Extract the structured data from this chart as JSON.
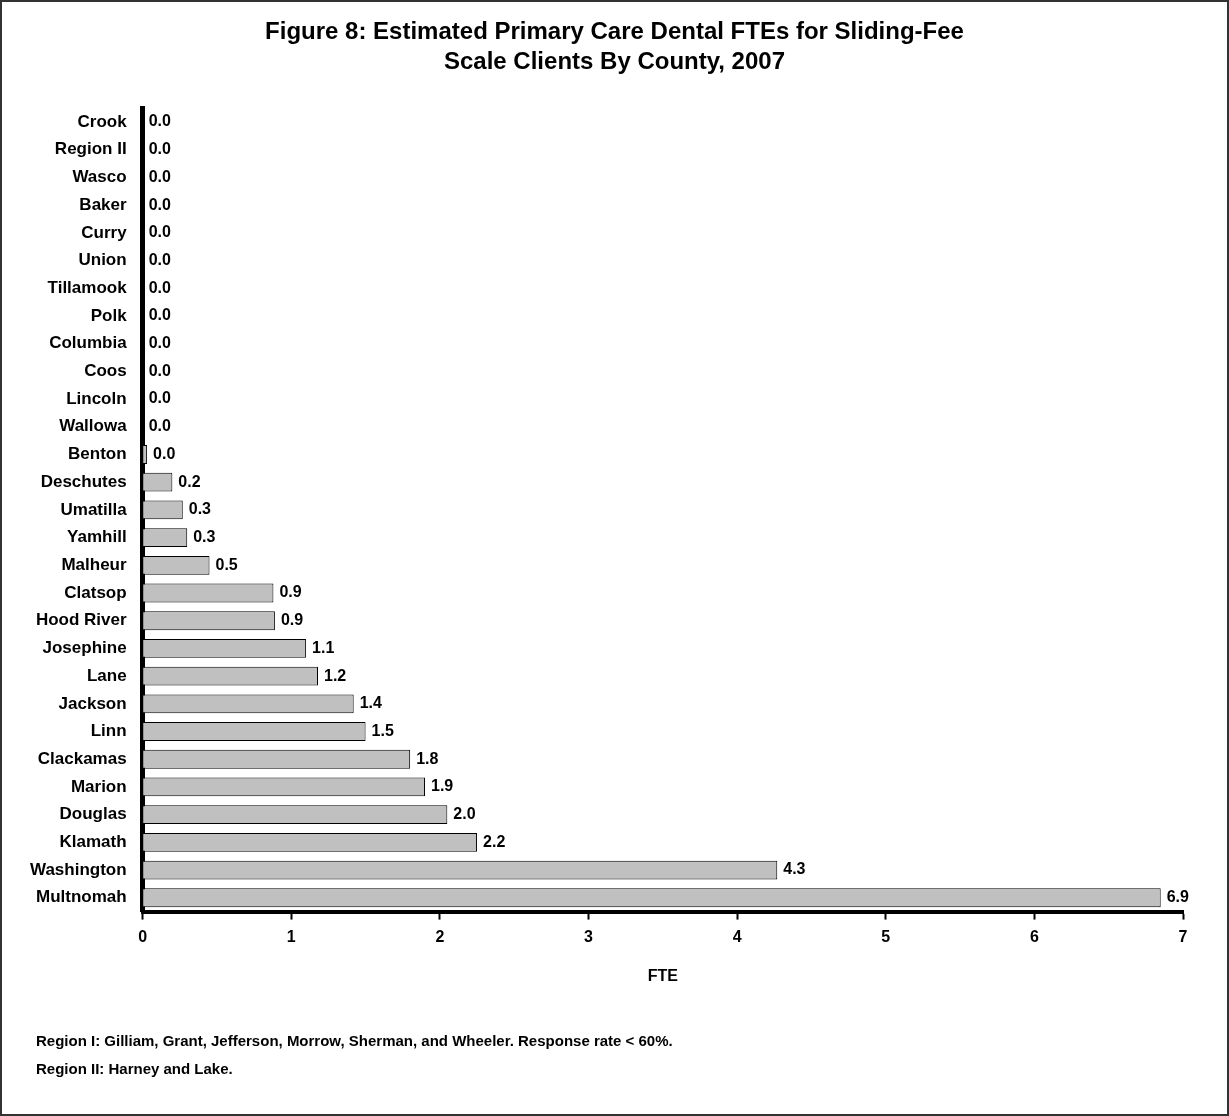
{
  "chart_data": {
    "type": "bar",
    "orientation": "horizontal",
    "title": "Figure 8: Estimated Primary Care Dental FTEs for Sliding-Fee Scale Clients By County, 2007",
    "xlabel": "FTE",
    "categories": [
      "Crook",
      "Region II",
      "Wasco",
      "Baker",
      "Curry",
      "Union",
      "Tillamook",
      "Polk",
      "Columbia",
      "Coos",
      "Lincoln",
      "Wallowa",
      "Benton",
      "Deschutes",
      "Umatilla",
      "Yamhill",
      "Malheur",
      "Clatsop",
      "Hood River",
      "Josephine",
      "Lane",
      "Jackson",
      "Linn",
      "Clackamas",
      "Marion",
      "Douglas",
      "Klamath",
      "Washington",
      "Multnomah"
    ],
    "values": [
      0,
      0,
      0,
      0,
      0,
      0,
      0,
      0,
      0,
      0,
      0,
      0,
      0.03,
      0.2,
      0.27,
      0.3,
      0.45,
      0.88,
      0.89,
      1.1,
      1.18,
      1.42,
      1.5,
      1.8,
      1.9,
      2.05,
      2.25,
      4.27,
      6.85
    ],
    "value_labels": [
      "0.0",
      "0.0",
      "0.0",
      "0.0",
      "0.0",
      "0.0",
      "0.0",
      "0.0",
      "0.0",
      "0.0",
      "0.0",
      "0.0",
      "0.0",
      "0.2",
      "0.3",
      "0.3",
      "0.5",
      "0.9",
      "0.9",
      "1.1",
      "1.2",
      "1.4",
      "1.5",
      "1.8",
      "1.9",
      "2.0",
      "2.2",
      "4.3",
      "6.9"
    ],
    "color": "#c0c0c0",
    "xlim": [
      0,
      7
    ],
    "xticks": [
      0,
      1,
      2,
      3,
      4,
      5,
      6,
      7
    ],
    "grid": false,
    "legend": false,
    "annotations": [
      "Region I: Gilliam, Grant, Jefferson, Morrow, Sherman, and Wheeler. Response rate < 60%.",
      "Region II: Harney and Lake."
    ]
  }
}
